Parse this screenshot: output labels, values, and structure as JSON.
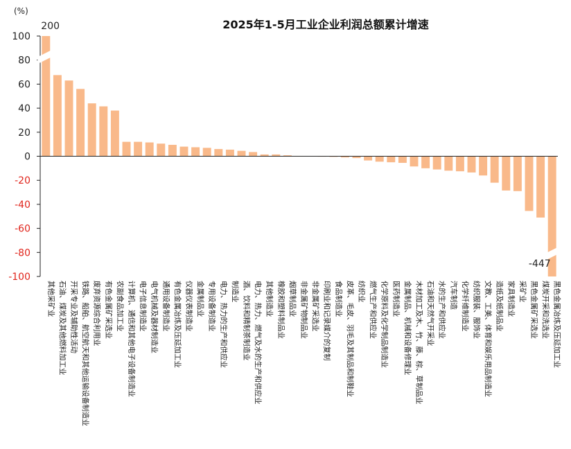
{
  "chart_data": {
    "type": "bar",
    "title": "2025年1-5月工业企业利润总额累计增速",
    "unit_label": "(%)",
    "ylim": [
      -100,
      100
    ],
    "yticks": [
      100,
      80,
      60,
      40,
      20,
      0,
      -20,
      -40,
      -60,
      -80,
      -100
    ],
    "yticks_negative_color": "#e0241b",
    "bar_color": "#f9b98a",
    "grid": false,
    "legend": "none",
    "axis_break": true,
    "categories": [
      "其他采矿业",
      "石油、煤炭及其他燃料加工业",
      "开采专业及辅助性活动",
      "铁路、船舶、航空航天和其他运输设备制造业",
      "废弃资源综合利用业",
      "有色金属矿采选业",
      "农副食品加工业",
      "计算机、通信和其他电子设备制造业",
      "电子信息制造业",
      "电气机械及器材制造业",
      "通用设备制造业",
      "有色金属冶炼及压延加工业",
      "仪器仪表制造业",
      "金属制品业",
      "专用设备制造业",
      "电力、热力的生产和供应业",
      "制造业",
      "酒、饮料和精制茶制造业",
      "电力、热力、燃气及水的生产和供应业",
      "其他制造业",
      "橡胶和塑料制品业",
      "烟草制品业",
      "非金属矿物制品业",
      "非金属矿采选业",
      "印刷业和记录媒介的复制",
      "食品制造业",
      "皮革、毛皮、羽毛及其制品和制鞋业",
      "纺织业",
      "燃气生产和供应业",
      "化学原料及化学制品制造业",
      "医药制造业",
      "金属制品、机械和设备修理业",
      "木材加工及木、竹、藤、棕、草制品业",
      "石油和天然气开采业",
      "水的生产和供应业",
      "汽车制造",
      "化学纤维制造业",
      "纺织服装、服饰业",
      "文教、工美、体育和娱乐用品制造业",
      "造纸及纸制品业",
      "家具制造业",
      "采矿业",
      "黑色金属矿采选业",
      "煤炭开采和洗选业",
      "黑色金属冶炼及压延加工业"
    ],
    "values": [
      200,
      67.5,
      63,
      56,
      44,
      41.5,
      38,
      12,
      12,
      11.5,
      10.5,
      9.5,
      8,
      7.5,
      7,
      6,
      5.5,
      4.5,
      3.5,
      1.5,
      1.5,
      0.8,
      0.3,
      0.2,
      -0.3,
      -0.5,
      -1.0,
      -1.5,
      -3.5,
      -4.5,
      -5,
      -5.5,
      -8.5,
      -10,
      -11,
      -12,
      -12.5,
      -13.5,
      -16,
      -22,
      -28.5,
      -29,
      -45.5,
      -51,
      -447
    ],
    "data_labels": [
      {
        "index": 0,
        "text": "200"
      },
      {
        "index": 44,
        "text": "-447"
      }
    ]
  }
}
